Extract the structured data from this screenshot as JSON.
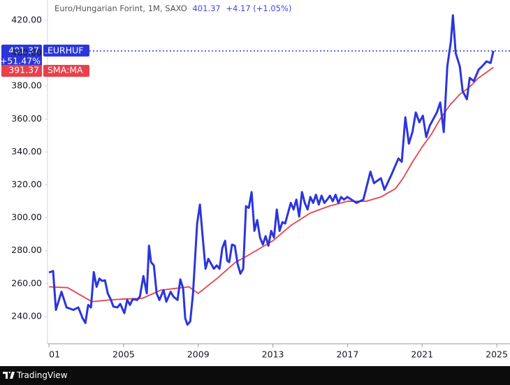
{
  "chart_data": {
    "type": "line",
    "title": "Euro/Hungarian Forint, 1M, SAXO",
    "header_price": "401.37",
    "header_change": "+4.17 (+1.05%)",
    "last_change_pct": "+51.47%",
    "brand": "TradingView",
    "xlim": [
      2000.92,
      2025.71
    ],
    "xticks": [
      {
        "value": 2001,
        "label": "01"
      },
      2005,
      2009,
      2013,
      2017,
      2021,
      2025
    ],
    "ylim": [
      223.4,
      432.3
    ],
    "yticks": [
      {
        "value": 240,
        "label": "240.00"
      },
      {
        "value": 260,
        "label": "260.00"
      },
      {
        "value": 280,
        "label": "280.00"
      },
      {
        "value": 300,
        "label": "300.00"
      },
      {
        "value": 320,
        "label": "320.00"
      },
      {
        "value": 340,
        "label": "340.00"
      },
      {
        "value": 360,
        "label": "360.00"
      },
      {
        "value": 380,
        "label": "380.00"
      },
      {
        "value": 400,
        "label": "400.00"
      },
      {
        "value": 420,
        "label": "420.00"
      }
    ],
    "grid": false,
    "series": [
      {
        "name": "EURHUF",
        "color": "#2b35dc",
        "x": [
          2001.0,
          2001.22,
          2001.37,
          2001.67,
          2001.94,
          2002.31,
          2002.57,
          2002.8,
          2002.95,
          2003.1,
          2003.25,
          2003.4,
          2003.55,
          2003.7,
          2003.85,
          2004.0,
          2004.15,
          2004.3,
          2004.45,
          2004.67,
          2004.82,
          2005.04,
          2005.19,
          2005.34,
          2005.49,
          2005.72,
          2005.87,
          2006.06,
          2006.24,
          2006.36,
          2006.47,
          2006.62,
          2006.77,
          2006.92,
          2007.14,
          2007.29,
          2007.52,
          2007.67,
          2007.89,
          2008.04,
          2008.19,
          2008.3,
          2008.42,
          2008.57,
          2008.72,
          2008.94,
          2009.09,
          2009.24,
          2009.39,
          2009.54,
          2009.69,
          2009.84,
          2009.99,
          2010.14,
          2010.29,
          2010.44,
          2010.55,
          2010.66,
          2010.81,
          2010.96,
          2011.11,
          2011.26,
          2011.41,
          2011.56,
          2011.71,
          2011.86,
          2012.01,
          2012.16,
          2012.31,
          2012.46,
          2012.61,
          2012.76,
          2012.91,
          2013.06,
          2013.21,
          2013.36,
          2013.51,
          2013.66,
          2013.81,
          2013.96,
          2014.11,
          2014.26,
          2014.41,
          2014.56,
          2014.71,
          2014.86,
          2015.01,
          2015.16,
          2015.31,
          2015.46,
          2015.61,
          2015.76,
          2015.91,
          2016.06,
          2016.21,
          2016.36,
          2016.51,
          2016.66,
          2016.81,
          2016.99,
          2017.48,
          2017.85,
          2018.23,
          2018.42,
          2018.79,
          2018.98,
          2019.35,
          2019.54,
          2019.73,
          2019.91,
          2020.1,
          2020.29,
          2020.48,
          2020.66,
          2020.85,
          2021.04,
          2021.22,
          2021.41,
          2021.6,
          2021.79,
          2021.97,
          2022.16,
          2022.35,
          2022.54,
          2022.65,
          2022.8,
          2023.02,
          2023.17,
          2023.4,
          2023.55,
          2023.77,
          2024.03,
          2024.22,
          2024.45,
          2024.67,
          2024.82
        ],
        "values": [
          266.7,
          267.6,
          244,
          255,
          245.5,
          244,
          245.5,
          239,
          236,
          247,
          245.5,
          267,
          258,
          263,
          261.6,
          262,
          254,
          250.6,
          246,
          245.5,
          247.6,
          242,
          250,
          247,
          250.6,
          250,
          252,
          264.6,
          254,
          283,
          273,
          271,
          254,
          250,
          256,
          249,
          255,
          252,
          250,
          262.5,
          257,
          239,
          235,
          237,
          254,
          296.5,
          308,
          288,
          269,
          275,
          272,
          269,
          271,
          269,
          281.6,
          286,
          274,
          273,
          283.7,
          283,
          272,
          266,
          269,
          307,
          306,
          315.6,
          292,
          298.6,
          288,
          283.7,
          288.8,
          283,
          292,
          288,
          305,
          292,
          297.3,
          296.5,
          302.8,
          309,
          305,
          311,
          300.7,
          315.6,
          309,
          305,
          312.6,
          309,
          314,
          308,
          313.4,
          309,
          311,
          313.4,
          310,
          314,
          309,
          312.6,
          311,
          312.6,
          309,
          311,
          328,
          321,
          324,
          317,
          326,
          331,
          336,
          334,
          361,
          345,
          352,
          364,
          358,
          362,
          349,
          356,
          360,
          364,
          370,
          352,
          392,
          407,
          423,
          400,
          392,
          377,
          372,
          385,
          383,
          390,
          392,
          395,
          394,
          401.37
        ]
      },
      {
        "name": "SMA:MA",
        "color": "#e8414b",
        "x": [
          2001.0,
          2002.0,
          2003.3,
          2004.2,
          2005.0,
          2006.0,
          2007.0,
          2008.5,
          2009.0,
          2010.0,
          2011.0,
          2011.5,
          2013.0,
          2014.0,
          2015.0,
          2016.0,
          2017.0,
          2018.0,
          2018.79,
          2019.57,
          2019.98,
          2020.48,
          2021.0,
          2021.5,
          2021.97,
          2022.5,
          2023.02,
          2023.5,
          2024.0,
          2024.82
        ],
        "values": [
          258,
          257.5,
          249,
          250,
          250.6,
          251,
          256,
          258,
          254,
          263,
          273,
          276,
          286,
          295.6,
          302.8,
          307,
          310,
          310,
          312.6,
          317.7,
          324,
          333.8,
          343,
          350.8,
          360,
          368.6,
          375,
          379,
          384.7,
          391.37
        ]
      }
    ]
  }
}
